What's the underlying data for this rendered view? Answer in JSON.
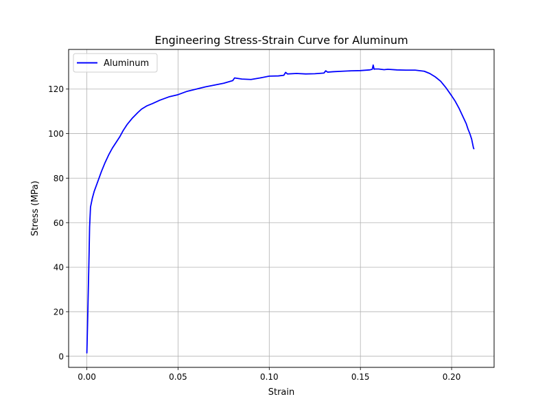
{
  "chart_data": {
    "type": "line",
    "title": "Engineering Stress-Strain Curve for Aluminum",
    "xlabel": "Strain",
    "ylabel": "Stress (MPa)",
    "xlim": [
      -0.01,
      0.2233
    ],
    "ylim": [
      -5,
      137.8
    ],
    "xticks": [
      0.0,
      0.05,
      0.1,
      0.15,
      0.2
    ],
    "xtick_labels": [
      "0.00",
      "0.05",
      "0.10",
      "0.15",
      "0.20"
    ],
    "yticks": [
      0,
      20,
      40,
      60,
      80,
      100,
      120
    ],
    "ytick_labels": [
      "0",
      "20",
      "40",
      "60",
      "80",
      "100",
      "120"
    ],
    "grid": true,
    "legend_position": "upper-left",
    "series": [
      {
        "name": "Aluminum",
        "color": "#0000ff",
        "x": [
          0.0,
          0.0004,
          0.0008,
          0.0012,
          0.0015,
          0.002,
          0.003,
          0.004,
          0.006,
          0.008,
          0.01,
          0.012,
          0.014,
          0.016,
          0.018,
          0.02,
          0.022,
          0.025,
          0.028,
          0.03,
          0.033,
          0.036,
          0.04,
          0.045,
          0.05,
          0.055,
          0.06,
          0.065,
          0.07,
          0.075,
          0.08,
          0.081,
          0.085,
          0.09,
          0.095,
          0.1,
          0.105,
          0.108,
          0.109,
          0.11,
          0.115,
          0.12,
          0.125,
          0.13,
          0.131,
          0.132,
          0.135,
          0.14,
          0.145,
          0.15,
          0.155,
          0.1565,
          0.157,
          0.1575,
          0.158,
          0.16,
          0.163,
          0.165,
          0.17,
          0.175,
          0.18,
          0.185,
          0.188,
          0.191,
          0.194,
          0.197,
          0.2,
          0.202,
          0.204,
          0.206,
          0.208,
          0.209,
          0.21,
          0.211,
          0.2115,
          0.212,
          0.2122
        ],
        "y": [
          1.5,
          15.0,
          30.0,
          45.0,
          58.0,
          67.0,
          71.0,
          74.0,
          78.5,
          83.0,
          87.0,
          90.5,
          93.5,
          96.0,
          98.5,
          101.5,
          104.0,
          107.0,
          109.5,
          111.0,
          112.5,
          113.5,
          115.0,
          116.5,
          117.5,
          119.0,
          120.0,
          121.0,
          121.8,
          122.6,
          123.8,
          125.0,
          124.5,
          124.3,
          125.0,
          125.8,
          125.9,
          126.2,
          127.5,
          126.8,
          127.0,
          126.8,
          126.9,
          127.2,
          128.2,
          127.6,
          127.8,
          128.0,
          128.2,
          128.3,
          128.6,
          128.9,
          130.8,
          128.9,
          129.0,
          129.0,
          128.7,
          128.9,
          128.6,
          128.5,
          128.5,
          128.0,
          127.0,
          125.5,
          123.5,
          120.5,
          117.0,
          114.5,
          111.5,
          108.0,
          104.5,
          102.0,
          100.0,
          97.5,
          95.5,
          93.5,
          93.2
        ]
      }
    ]
  }
}
